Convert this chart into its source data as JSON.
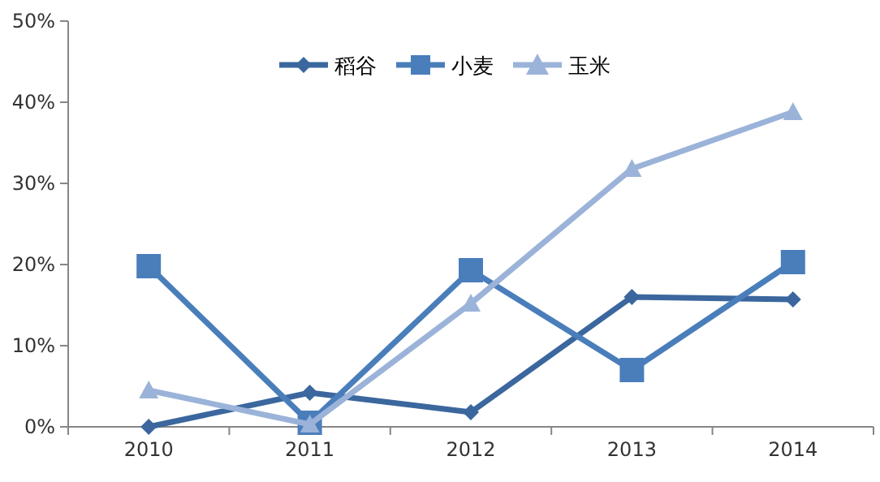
{
  "chart_data": {
    "type": "line",
    "categories": [
      "2010",
      "2011",
      "2012",
      "2013",
      "2014"
    ],
    "series": [
      {
        "name": "稻谷",
        "color": "#3b679e",
        "marker": "diamond",
        "values": [
          0,
          4.2,
          1.8,
          16,
          15.7
        ]
      },
      {
        "name": "小麦",
        "color": "#4a7ebb",
        "marker": "square",
        "values": [
          19.8,
          0.5,
          19.3,
          7,
          20.3
        ]
      },
      {
        "name": "玉米",
        "color": "#9bb3d9",
        "marker": "triangle",
        "values": [
          4.5,
          0.3,
          15.2,
          31.8,
          38.8
        ]
      }
    ],
    "ylim": [
      0,
      50
    ],
    "yticks": [
      {
        "value": 0,
        "label": "0%"
      },
      {
        "value": 10,
        "label": "10%"
      },
      {
        "value": 20,
        "label": "20%"
      },
      {
        "value": 30,
        "label": "30%"
      },
      {
        "value": 40,
        "label": "40%"
      },
      {
        "value": 50,
        "label": "50%"
      }
    ],
    "legend": "top"
  }
}
